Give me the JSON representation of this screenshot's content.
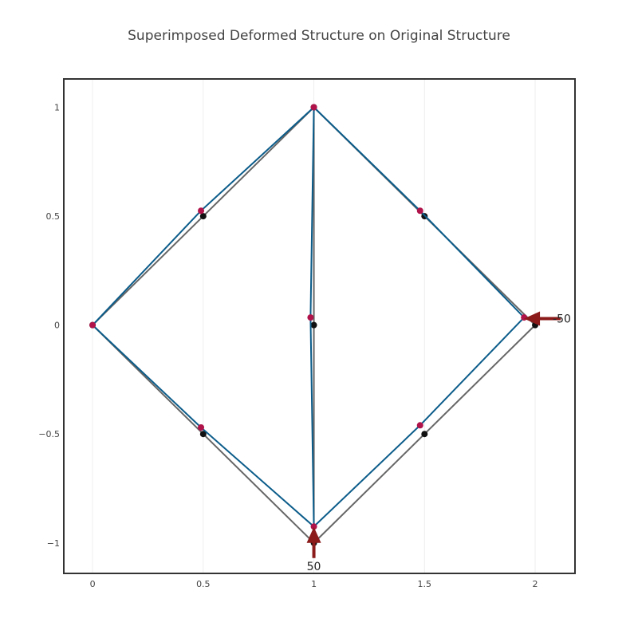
{
  "chart_data": {
    "type": "scatter",
    "title": "Superimposed Deformed Structure on Original Structure",
    "xlabel": "",
    "ylabel": "",
    "xlim": [
      -0.13,
      2.18
    ],
    "ylim": [
      -1.14,
      1.13
    ],
    "grid": true,
    "x_ticks": [
      {
        "value": 0,
        "label": "0"
      },
      {
        "value": 0.5,
        "label": "0.5"
      },
      {
        "value": 1,
        "label": "1"
      },
      {
        "value": 1.5,
        "label": "1.5"
      },
      {
        "value": 2,
        "label": "2"
      }
    ],
    "y_ticks": [
      {
        "value": 1,
        "label": "1"
      },
      {
        "value": 0.5,
        "label": "0.5"
      },
      {
        "value": 0,
        "label": "0"
      },
      {
        "value": -0.5,
        "label": "−0.5"
      },
      {
        "value": -1,
        "label": "−1"
      }
    ],
    "series": [
      {
        "color": "#666666",
        "lines": [
          [
            [
              1,
              1
            ],
            [
              0.5,
              0.5
            ],
            [
              0,
              0
            ]
          ],
          [
            [
              1,
              1
            ],
            [
              1.5,
              0.5
            ],
            [
              2,
              0
            ]
          ],
          [
            [
              0,
              0
            ],
            [
              0.5,
              -0.5
            ],
            [
              1,
              -1
            ]
          ],
          [
            [
              1,
              -1
            ],
            [
              1.5,
              -0.5
            ],
            [
              2,
              0
            ]
          ],
          [
            [
              1,
              1
            ],
            [
              1,
              0
            ],
            [
              1,
              -1
            ]
          ]
        ],
        "points": [
          [
            1,
            1
          ],
          [
            0.5,
            0.5
          ],
          [
            1.5,
            0.5
          ],
          [
            0,
            0
          ],
          [
            1,
            0
          ],
          [
            2,
            0
          ],
          [
            0.5,
            -0.5
          ],
          [
            1.5,
            -0.5
          ],
          [
            1,
            -1
          ]
        ],
        "point_color": "#111111"
      },
      {
        "color": "#0b5c8a",
        "lines": [
          [
            [
              1,
              1
            ],
            [
              0.49,
              0.525
            ],
            [
              0,
              0
            ]
          ],
          [
            [
              1,
              1
            ],
            [
              1.48,
              0.525
            ],
            [
              1.95,
              0.035
            ]
          ],
          [
            [
              0,
              0
            ],
            [
              0.49,
              -0.47
            ],
            [
              1,
              -0.925
            ]
          ],
          [
            [
              1,
              -0.925
            ],
            [
              1.48,
              -0.46
            ],
            [
              1.95,
              0.035
            ]
          ],
          [
            [
              1,
              1
            ],
            [
              0.985,
              0.035
            ],
            [
              1,
              -0.925
            ]
          ]
        ],
        "points": [
          [
            1,
            1
          ],
          [
            0.49,
            0.525
          ],
          [
            1.48,
            0.525
          ],
          [
            0,
            0
          ],
          [
            0.985,
            0.035
          ],
          [
            1.95,
            0.035
          ],
          [
            0.49,
            -0.47
          ],
          [
            1.48,
            -0.46
          ],
          [
            1,
            -0.925
          ]
        ],
        "point_color": "#b0134a"
      }
    ],
    "loads": [
      {
        "at": [
          2,
          0.03
        ],
        "direction": "left",
        "label": "-50",
        "color": "#8b1a1a"
      },
      {
        "at": [
          1,
          -1
        ],
        "direction": "up",
        "label": "50",
        "color": "#8b1a1a"
      }
    ]
  }
}
